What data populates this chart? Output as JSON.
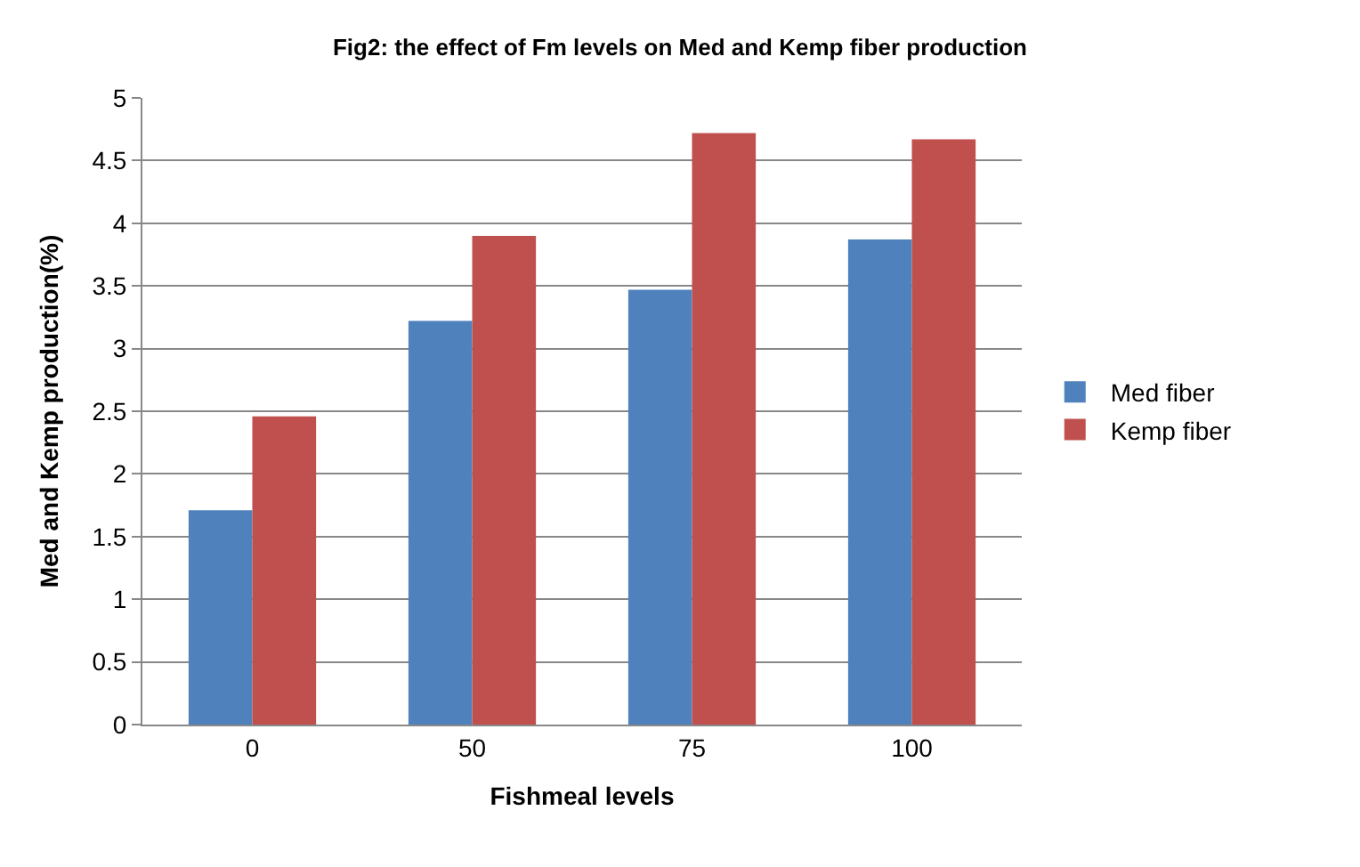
{
  "chart_data": {
    "type": "bar",
    "title": "Fig2: the effect of Fm levels on Med and Kemp fiber production",
    "xlabel": "Fishmeal levels",
    "ylabel": "Med and Kemp production(%)",
    "categories": [
      "0",
      "50",
      "75",
      "100"
    ],
    "series": [
      {
        "name": "Med fiber",
        "color": "#4f81bd",
        "values": [
          1.71,
          3.22,
          3.47,
          3.87
        ]
      },
      {
        "name": "Kemp fiber",
        "color": "#c0504d",
        "values": [
          2.46,
          3.9,
          4.72,
          4.67
        ]
      }
    ],
    "ylim": [
      0,
      5
    ],
    "yticks": [
      0,
      0.5,
      1,
      1.5,
      2,
      2.5,
      3,
      3.5,
      4,
      4.5,
      5
    ],
    "grid": "y",
    "legend": "right"
  }
}
